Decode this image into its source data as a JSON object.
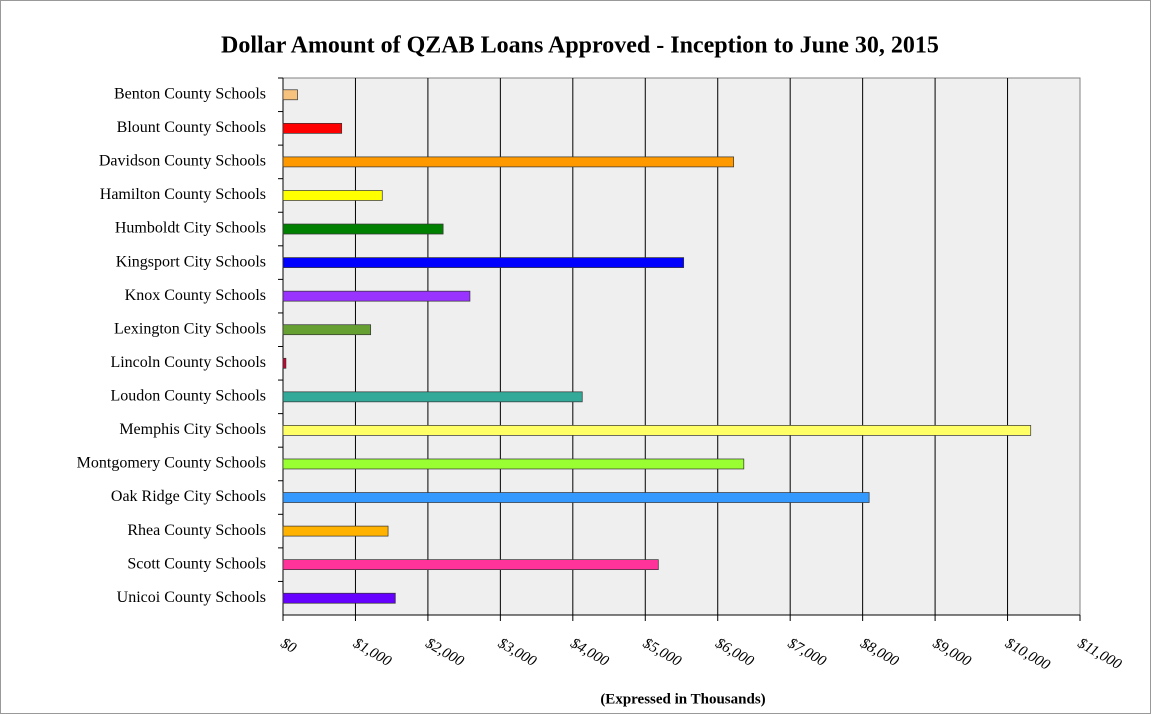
{
  "chart_data": {
    "type": "barh",
    "title": "Dollar Amount of QZAB Loans Approved - Inception to June 30, 2015",
    "x_label": "(Expressed in Thousands)",
    "categories": [
      "Benton County Schools",
      "Blount County Schools",
      "Davidson County Schools",
      "Hamilton County Schools",
      "Humboldt City Schools",
      "Kingsport City Schools",
      "Knox County Schools",
      "Lexington City Schools",
      "Lincoln County Schools",
      "Loudon County Schools",
      "Memphis City Schools",
      "Montgomery County Schools",
      "Oak Ridge City Schools",
      "Rhea County Schools",
      "Scott County Schools",
      "Unicoi County Schools"
    ],
    "values": [
      200,
      810,
      6220,
      1370,
      2210,
      5530,
      2580,
      1210,
      40,
      4130,
      10320,
      6360,
      8090,
      1450,
      5180,
      1550
    ],
    "colors": [
      "#f7c27e",
      "#ff0000",
      "#ff9900",
      "#ffff00",
      "#008000",
      "#0000ff",
      "#9933ff",
      "#66a033",
      "#cc0033",
      "#33a99a",
      "#ffff66",
      "#99ff33",
      "#3399ff",
      "#ffb300",
      "#ff3399",
      "#6600ff"
    ],
    "xlim": [
      0,
      11000
    ],
    "xticks": [
      {
        "value": 0,
        "label": "$0"
      },
      {
        "value": 1000,
        "label": "$1,000"
      },
      {
        "value": 2000,
        "label": "$2,000"
      },
      {
        "value": 3000,
        "label": "$3,000"
      },
      {
        "value": 4000,
        "label": "$4,000"
      },
      {
        "value": 5000,
        "label": "$5,000"
      },
      {
        "value": 6000,
        "label": "$6,000"
      },
      {
        "value": 7000,
        "label": "$7,000"
      },
      {
        "value": 8000,
        "label": "$8,000"
      },
      {
        "value": 9000,
        "label": "$9,000"
      },
      {
        "value": 10000,
        "label": "$10,000"
      },
      {
        "value": 11000,
        "label": "$11,000"
      }
    ],
    "grid": true
  }
}
